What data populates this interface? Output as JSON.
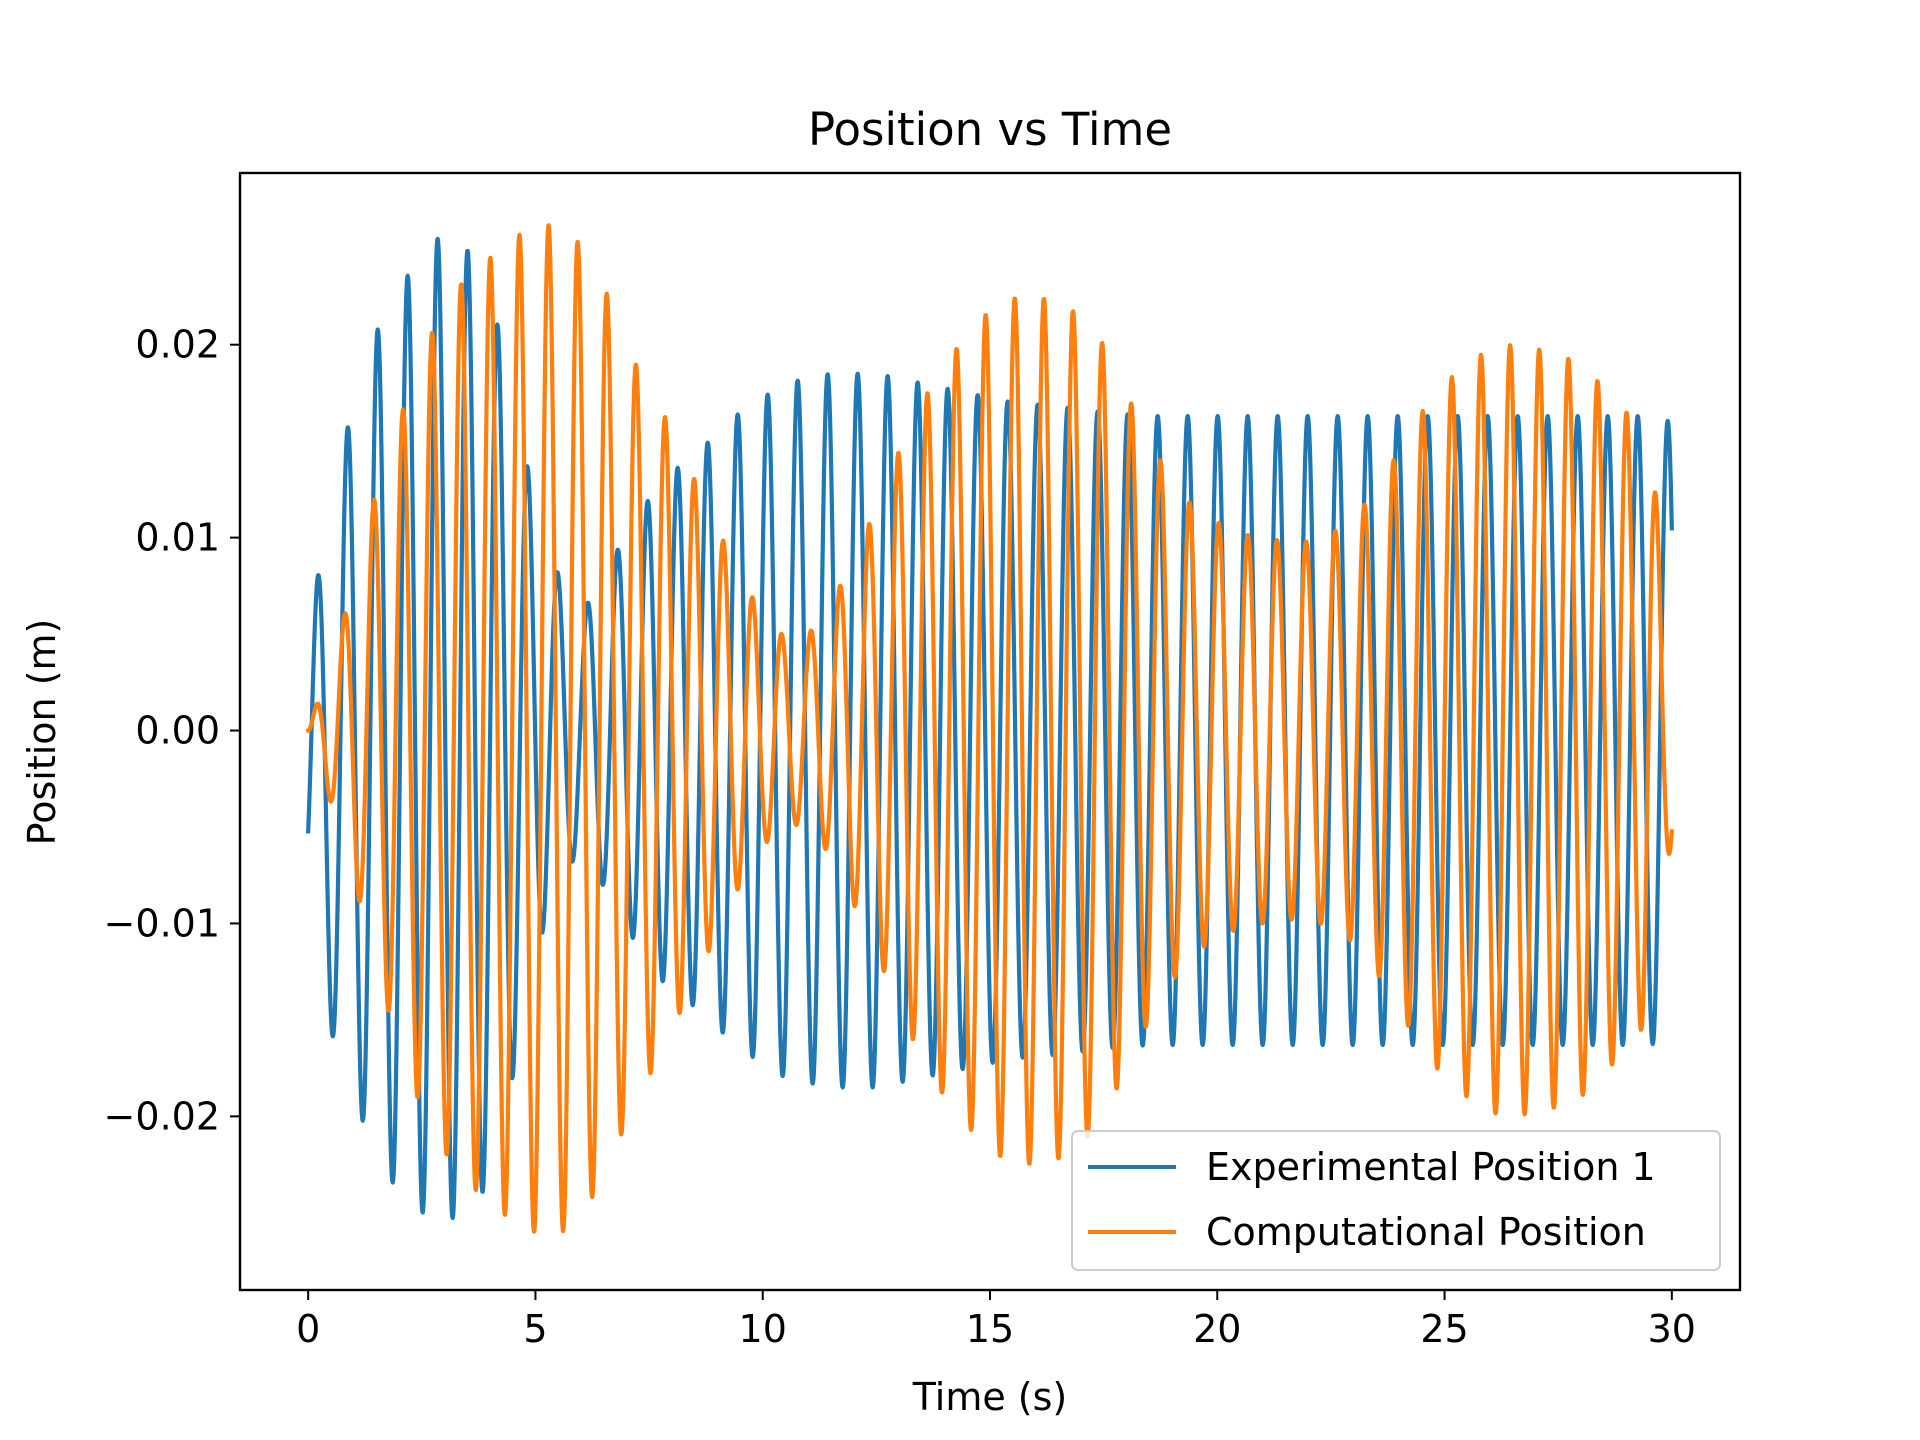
{
  "chart_data": {
    "type": "line",
    "title": "Position vs Time",
    "xlabel": "Time (s)",
    "ylabel": "Position (m)",
    "xlim": [
      -1.5,
      31.5
    ],
    "ylim": [
      -0.029,
      0.0289
    ],
    "xticks": [
      0,
      5,
      10,
      15,
      20,
      25,
      30
    ],
    "xtick_labels": [
      "0",
      "5",
      "10",
      "15",
      "20",
      "25",
      "30"
    ],
    "yticks": [
      -0.02,
      -0.01,
      0.0,
      0.01,
      0.02
    ],
    "ytick_labels": [
      "−0.02",
      "−0.01",
      "0.00",
      "0.01",
      "0.02"
    ],
    "grid": false,
    "legend_position": "lower-right",
    "series": [
      {
        "name": "Experimental Position 1",
        "color": "#1f77b4",
        "t_range": [
          0,
          30
        ],
        "frequency_hz": 1.515,
        "phase_rad": -0.4,
        "amplitude_envelope": {
          "t": [
            0,
            0.4,
            1.0,
            1.6,
            2.2,
            2.8,
            3.4,
            4.0,
            4.4,
            4.8,
            5.3,
            6.0,
            6.6,
            7.2,
            7.8,
            8.6,
            9.5,
            10.5,
            11.5,
            12.5,
            13.5,
            14.5,
            15.5,
            16.5,
            17.5,
            18.5,
            19.5,
            20.5,
            21.5,
            22.5,
            23.5,
            24.5,
            25.5,
            26.5,
            27.5,
            28.5,
            29.5,
            30.0
          ],
          "values": [
            0.007,
            0.013,
            0.018,
            0.022,
            0.024,
            0.0255,
            0.0253,
            0.023,
            0.019,
            0.014,
            0.009,
            0.006,
            0.0085,
            0.011,
            0.013,
            0.0145,
            0.0165,
            0.018,
            0.0185,
            0.0185,
            0.018,
            0.0175,
            0.017,
            0.0168,
            0.0165,
            0.0163,
            0.0163,
            0.0163,
            0.0163,
            0.0163,
            0.0163,
            0.0163,
            0.0163,
            0.0163,
            0.0163,
            0.0163,
            0.0163,
            0.016
          ]
        },
        "offset_envelope": {
          "t": [
            0,
            1.0,
            2.0,
            3.0,
            3.4,
            3.8,
            4.2,
            5.0,
            6.0,
            7.0,
            8.0,
            9.0,
            10.0,
            11.0,
            12.0,
            14.0,
            16.0,
            18.0,
            20.0,
            22.0,
            24.0,
            26.0,
            28.0,
            30.0
          ],
          "values": [
            -0.0025,
            -0.001,
            -0.0005,
            0.0001,
            0.0001,
            -0.0003,
            -0.0003,
            0.0,
            0.0,
            0.0,
            0.0,
            0.0,
            0.0,
            0.0,
            0.0,
            0.0,
            0.0,
            0.0,
            0.0,
            0.0,
            0.0,
            0.0,
            0.0,
            0.0
          ]
        }
      },
      {
        "name": "Computational Position",
        "color": "#ff7f0e",
        "t_range": [
          0,
          30
        ],
        "frequency_hz": 1.56,
        "phase_rad": 0,
        "amplitude_envelope": {
          "t": [
            0,
            0.4,
            0.8,
            1.2,
            1.6,
            2.0,
            2.4,
            2.8,
            3.3,
            4.0,
            4.7,
            5.3,
            5.8,
            6.3,
            6.8,
            7.2,
            7.6,
            8.0,
            8.5,
            9.0,
            9.5,
            10.0,
            10.5,
            11.0,
            11.5,
            12.0,
            12.5,
            13.0,
            13.5,
            14.0,
            14.5,
            15.0,
            15.5,
            16.0,
            16.5,
            17.0,
            17.5,
            18.0,
            18.5,
            19.0,
            19.5,
            20.0,
            20.5,
            21.0,
            21.5,
            22.0,
            22.5,
            23.0,
            23.5,
            24.0,
            24.5,
            25.0,
            25.5,
            26.0,
            26.5,
            27.0,
            27.5,
            28.0,
            28.5,
            29.0,
            29.5,
            30.0
          ],
          "values": [
            0.0,
            0.003,
            0.006,
            0.0095,
            0.0135,
            0.016,
            0.019,
            0.021,
            0.023,
            0.0245,
            0.0258,
            0.0262,
            0.0258,
            0.024,
            0.0215,
            0.019,
            0.0175,
            0.0155,
            0.013,
            0.0105,
            0.008,
            0.006,
            0.0048,
            0.005,
            0.0065,
            0.009,
            0.0115,
            0.0145,
            0.017,
            0.019,
            0.0205,
            0.0218,
            0.0224,
            0.0225,
            0.0222,
            0.0215,
            0.02,
            0.0175,
            0.015,
            0.013,
            0.0115,
            0.0108,
            0.0102,
            0.01,
            0.0098,
            0.0098,
            0.0102,
            0.011,
            0.0125,
            0.0145,
            0.0165,
            0.018,
            0.019,
            0.0198,
            0.02,
            0.0198,
            0.0195,
            0.019,
            0.0178,
            0.0165,
            0.015,
            0.0055
          ]
        },
        "offset_envelope": {
          "t": [
            0,
            30
          ],
          "values": [
            0.0,
            0.0
          ]
        }
      }
    ]
  }
}
